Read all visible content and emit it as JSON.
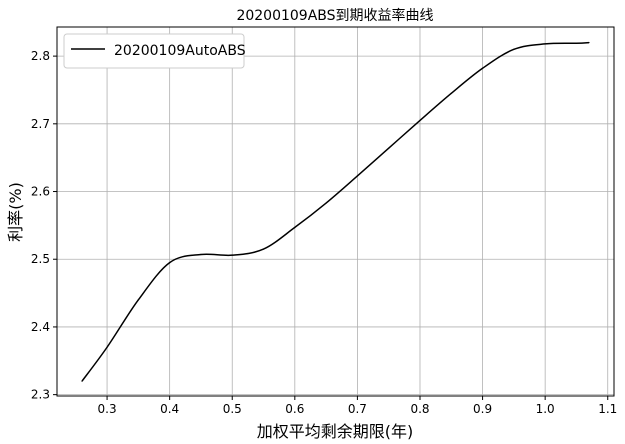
{
  "chart_data": {
    "type": "line",
    "title": "20200109ABS到期收益率曲线",
    "xlabel": "加权平均剩余期限(年)",
    "ylabel": "利率(%)",
    "xlim": [
      0.22,
      1.11
    ],
    "ylim": [
      2.298,
      2.843
    ],
    "xticks": [
      0.3,
      0.4,
      0.5,
      0.6,
      0.7,
      0.8,
      0.9,
      1.0,
      1.1
    ],
    "xtick_labels": [
      "0.3",
      "0.4",
      "0.5",
      "0.6",
      "0.7",
      "0.8",
      "0.9",
      "1.0",
      "1.1"
    ],
    "yticks": [
      2.3,
      2.4,
      2.5,
      2.6,
      2.7,
      2.8
    ],
    "ytick_labels": [
      "2.3",
      "2.4",
      "2.5",
      "2.6",
      "2.7",
      "2.8"
    ],
    "grid": true,
    "legend_position": "top-left",
    "colors": {
      "line": "#000000",
      "grid": "#b0b0b0",
      "axes": "#000000"
    },
    "series": [
      {
        "name": "20200109AutoABS",
        "x": [
          0.26,
          0.3,
          0.35,
          0.4,
          0.45,
          0.5,
          0.55,
          0.6,
          0.65,
          0.7,
          0.75,
          0.8,
          0.85,
          0.9,
          0.95,
          1.0,
          1.05,
          1.07
        ],
        "y": [
          2.32,
          2.37,
          2.44,
          2.495,
          2.507,
          2.506,
          2.515,
          2.547,
          2.583,
          2.623,
          2.664,
          2.705,
          2.745,
          2.782,
          2.81,
          2.818,
          2.819,
          2.82
        ]
      }
    ]
  }
}
